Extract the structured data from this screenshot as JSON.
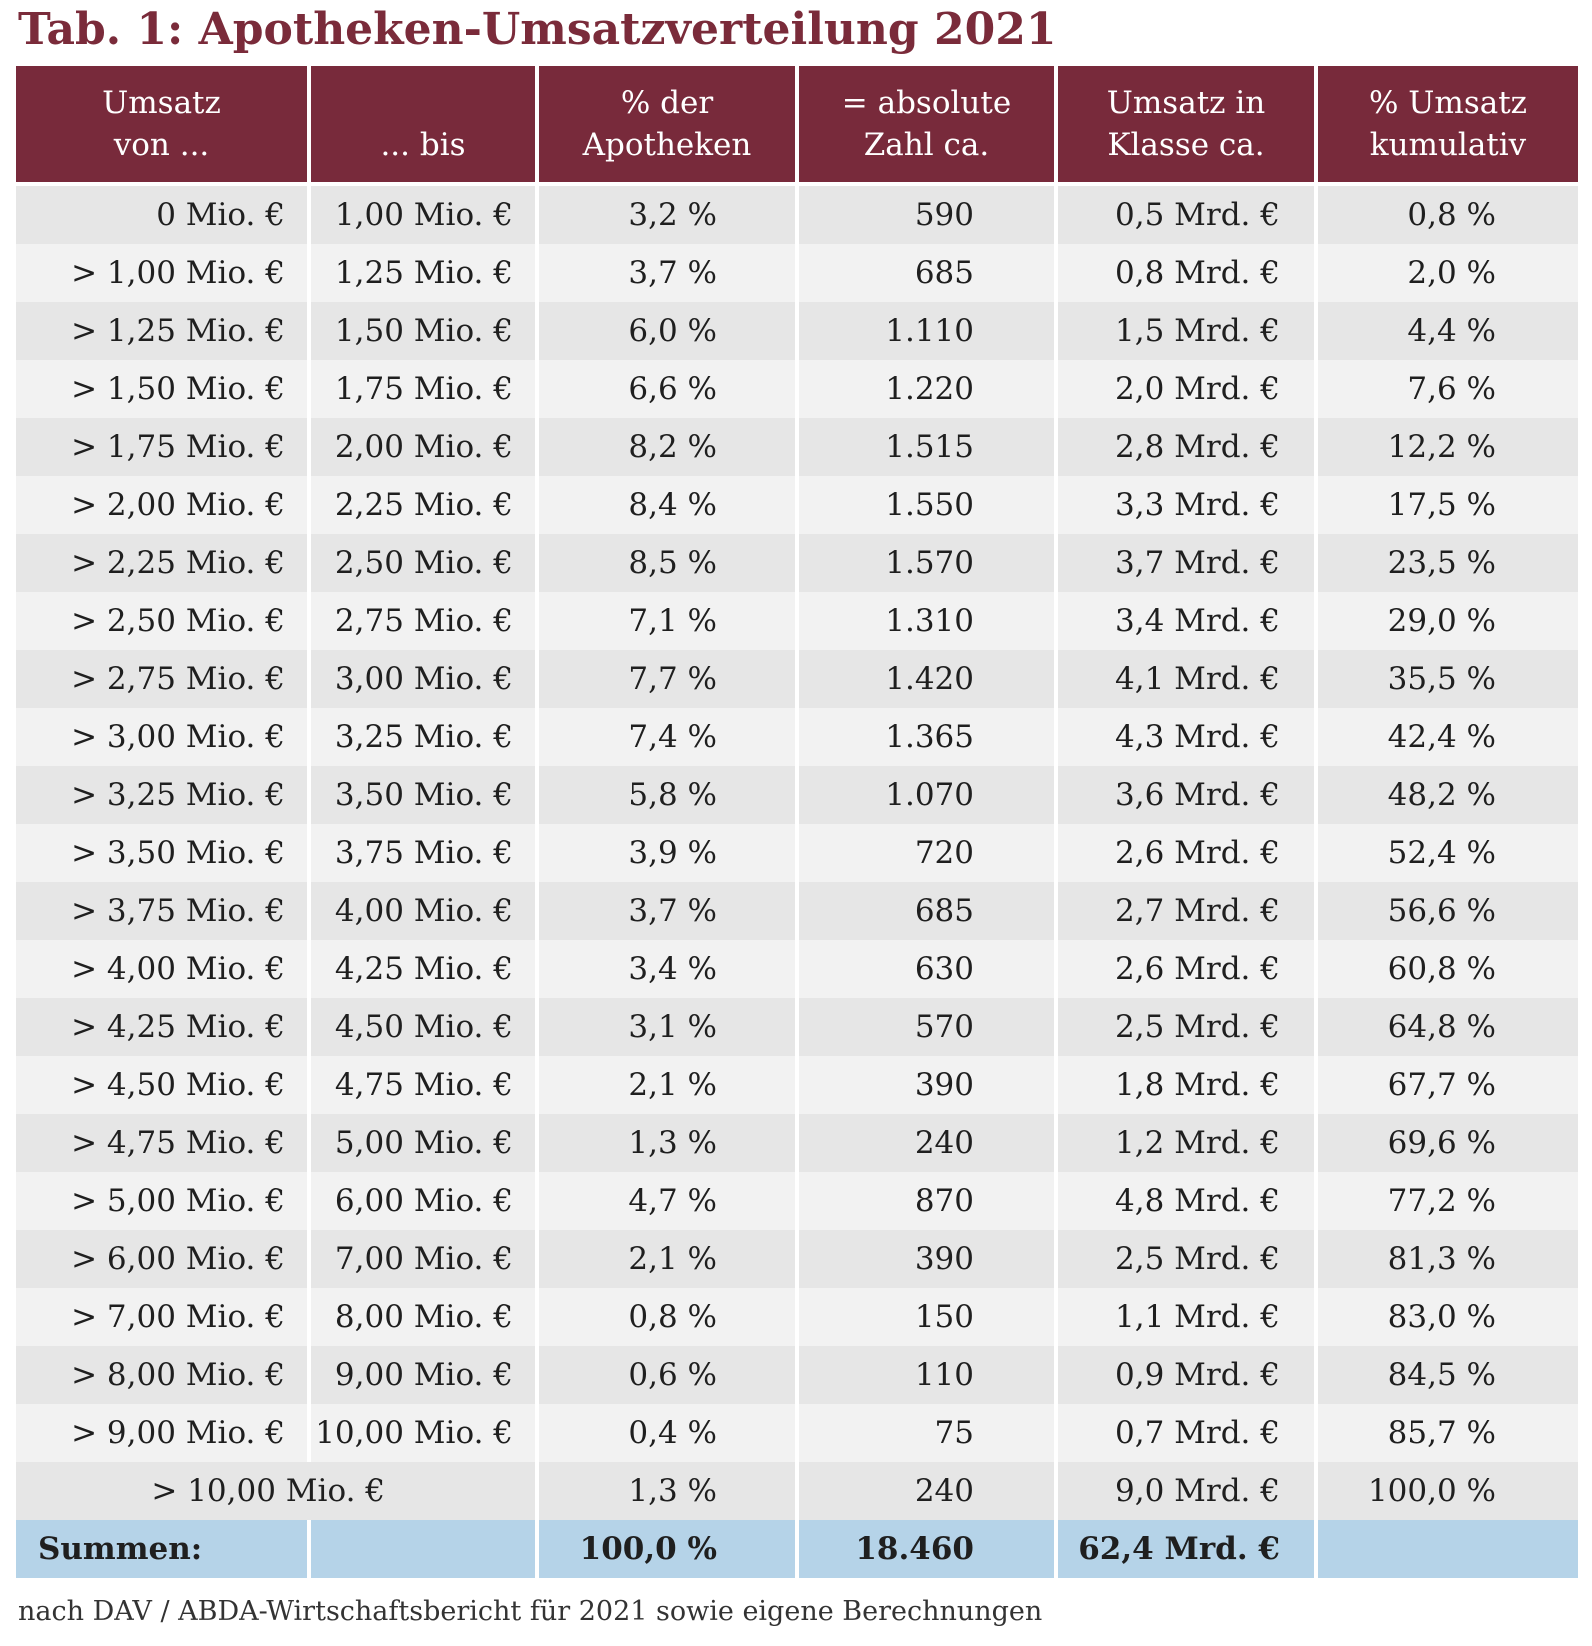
{
  "title": "Tab. 1: Apotheken-Umsatzverteilung 2021",
  "headers": [
    {
      "line1": "Umsatz",
      "line2": "von ..."
    },
    {
      "line1": "",
      "line2": "... bis"
    },
    {
      "line1": "% der",
      "line2": "Apotheken"
    },
    {
      "line1": "= absolute",
      "line2": "Zahl ca."
    },
    {
      "line1": "Umsatz in",
      "line2": "Klasse ca."
    },
    {
      "line1": "% Umsatz",
      "line2": "kumulativ"
    }
  ],
  "rows": [
    {
      "von": "0 Mio. €",
      "bis": "1,00 Mio. €",
      "pct": "3,2 %",
      "abs": "590",
      "umsatz": "0,5 Mrd. €",
      "kum": "0,8 %"
    },
    {
      "von": "> 1,00 Mio. €",
      "bis": "1,25 Mio. €",
      "pct": "3,7 %",
      "abs": "685",
      "umsatz": "0,8 Mrd. €",
      "kum": "2,0 %"
    },
    {
      "von": "> 1,25 Mio. €",
      "bis": "1,50 Mio. €",
      "pct": "6,0 %",
      "abs": "1.110",
      "umsatz": "1,5 Mrd. €",
      "kum": "4,4 %"
    },
    {
      "von": "> 1,50 Mio. €",
      "bis": "1,75 Mio. €",
      "pct": "6,6 %",
      "abs": "1.220",
      "umsatz": "2,0 Mrd. €",
      "kum": "7,6 %"
    },
    {
      "von": "> 1,75 Mio. €",
      "bis": "2,00 Mio. €",
      "pct": "8,2 %",
      "abs": "1.515",
      "umsatz": "2,8 Mrd. €",
      "kum": "12,2 %"
    },
    {
      "von": "> 2,00 Mio. €",
      "bis": "2,25 Mio. €",
      "pct": "8,4 %",
      "abs": "1.550",
      "umsatz": "3,3 Mrd. €",
      "kum": "17,5 %"
    },
    {
      "von": "> 2,25 Mio. €",
      "bis": "2,50 Mio. €",
      "pct": "8,5 %",
      "abs": "1.570",
      "umsatz": "3,7 Mrd. €",
      "kum": "23,5 %"
    },
    {
      "von": "> 2,50 Mio. €",
      "bis": "2,75 Mio. €",
      "pct": "7,1 %",
      "abs": "1.310",
      "umsatz": "3,4 Mrd. €",
      "kum": "29,0 %"
    },
    {
      "von": "> 2,75 Mio. €",
      "bis": "3,00 Mio. €",
      "pct": "7,7 %",
      "abs": "1.420",
      "umsatz": "4,1 Mrd. €",
      "kum": "35,5 %"
    },
    {
      "von": "> 3,00 Mio. €",
      "bis": "3,25 Mio. €",
      "pct": "7,4 %",
      "abs": "1.365",
      "umsatz": "4,3 Mrd. €",
      "kum": "42,4 %"
    },
    {
      "von": "> 3,25 Mio. €",
      "bis": "3,50 Mio. €",
      "pct": "5,8 %",
      "abs": "1.070",
      "umsatz": "3,6 Mrd. €",
      "kum": "48,2 %"
    },
    {
      "von": "> 3,50 Mio. €",
      "bis": "3,75 Mio. €",
      "pct": "3,9 %",
      "abs": "720",
      "umsatz": "2,6 Mrd. €",
      "kum": "52,4 %"
    },
    {
      "von": "> 3,75 Mio. €",
      "bis": "4,00 Mio. €",
      "pct": "3,7 %",
      "abs": "685",
      "umsatz": "2,7 Mrd. €",
      "kum": "56,6 %"
    },
    {
      "von": "> 4,00 Mio. €",
      "bis": "4,25 Mio. €",
      "pct": "3,4 %",
      "abs": "630",
      "umsatz": "2,6 Mrd. €",
      "kum": "60,8 %"
    },
    {
      "von": "> 4,25 Mio. €",
      "bis": "4,50 Mio. €",
      "pct": "3,1 %",
      "abs": "570",
      "umsatz": "2,5 Mrd. €",
      "kum": "64,8 %"
    },
    {
      "von": "> 4,50 Mio. €",
      "bis": "4,75 Mio. €",
      "pct": "2,1 %",
      "abs": "390",
      "umsatz": "1,8 Mrd. €",
      "kum": "67,7 %"
    },
    {
      "von": "> 4,75 Mio. €",
      "bis": "5,00 Mio. €",
      "pct": "1,3 %",
      "abs": "240",
      "umsatz": "1,2 Mrd. €",
      "kum": "69,6 %"
    },
    {
      "von": "> 5,00 Mio. €",
      "bis": "6,00 Mio. €",
      "pct": "4,7 %",
      "abs": "870",
      "umsatz": "4,8 Mrd. €",
      "kum": "77,2 %"
    },
    {
      "von": "> 6,00 Mio. €",
      "bis": "7,00 Mio. €",
      "pct": "2,1 %",
      "abs": "390",
      "umsatz": "2,5 Mrd. €",
      "kum": "81,3 %"
    },
    {
      "von": "> 7,00 Mio. €",
      "bis": "8,00 Mio. €",
      "pct": "0,8 %",
      "abs": "150",
      "umsatz": "1,1 Mrd. €",
      "kum": "83,0 %"
    },
    {
      "von": "> 8,00 Mio. €",
      "bis": "9,00 Mio. €",
      "pct": "0,6 %",
      "abs": "110",
      "umsatz": "0,9 Mrd. €",
      "kum": "84,5 %"
    },
    {
      "von": "> 9,00 Mio. €",
      "bis": "10,00 Mio. €",
      "pct": "0,4 %",
      "abs": "75",
      "umsatz": "0,7 Mrd. €",
      "kum": "85,7 %"
    }
  ],
  "last_row": {
    "range": "> 10,00 Mio. €",
    "pct": "1,3 %",
    "abs": "240",
    "umsatz": "9,0 Mrd. €",
    "kum": "100,0 %"
  },
  "totals": {
    "label": "Summen:",
    "pct": "100,0 %",
    "abs": "18.460",
    "umsatz": "62,4 Mrd. €"
  },
  "footnote": "nach DAV / ABDA-Wirtschaftsbericht für 2021 sowie eigene Berechnungen",
  "colors": {
    "header_bg": "#782a3b",
    "title": "#7a2b3a",
    "row_dark": "#e6e6e6",
    "row_light": "#f2f2f2",
    "totals_bg": "#b5d3e8"
  }
}
